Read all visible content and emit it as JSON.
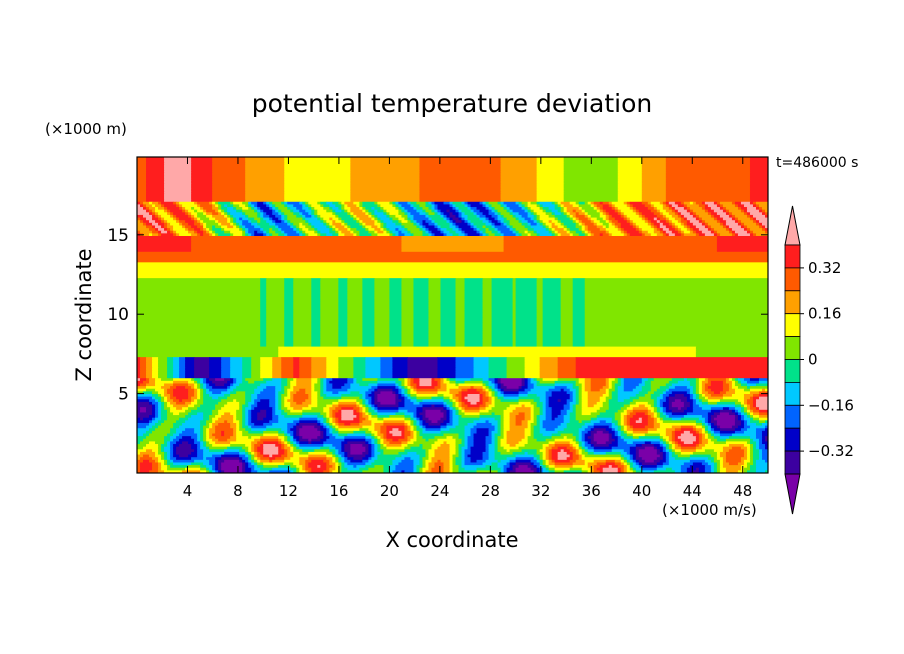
{
  "chart_data": {
    "type": "heatmap",
    "title": "potential temperature deviation",
    "xlabel": "X coordinate",
    "ylabel": "Z coordinate",
    "x_unit_label": "(×1000 m/s)",
    "y_unit_label": "(×1000 m)",
    "time_label": "t=486000 s",
    "xlim": [
      0,
      50
    ],
    "ylim": [
      0,
      19.9
    ],
    "x_ticks": [
      "4",
      "8",
      "12",
      "16",
      "20",
      "24",
      "28",
      "32",
      "36",
      "40",
      "44",
      "48"
    ],
    "x_tick_values": [
      4,
      8,
      12,
      16,
      20,
      24,
      28,
      32,
      36,
      40,
      44,
      48
    ],
    "y_ticks": [
      "5",
      "10",
      "15"
    ],
    "y_tick_values": [
      5,
      10,
      15
    ],
    "grid": false,
    "colorbar": {
      "levels": [
        -0.4,
        -0.32,
        -0.24,
        -0.16,
        -0.08,
        0,
        0.08,
        0.16,
        0.24,
        0.32,
        0.4
      ],
      "tick_labels": [
        "0.32",
        "0.16",
        "0",
        "−0.16",
        "−0.32"
      ],
      "tick_values": [
        0.32,
        0.16,
        0,
        -0.16,
        -0.32
      ],
      "colors": [
        "#7a00a8",
        "#3c00a0",
        "#0000c8",
        "#0064ff",
        "#00c8ff",
        "#00e28a",
        "#80e600",
        "#ffff00",
        "#ffa000",
        "#ff5a00",
        "#ff1e1e",
        "#ffa8a8"
      ],
      "extend": "both"
    }
  }
}
